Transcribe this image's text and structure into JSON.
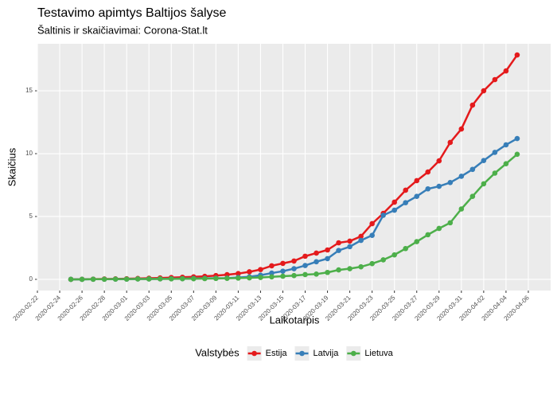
{
  "chart_data": {
    "type": "line",
    "title": "Testavimo apimtys Baltijos šalyse",
    "subtitle": "Šaltinis ir skaičiavimai: Corona-Stat.lt",
    "x_label": "Laikotarpis",
    "y_label": "Skaičius",
    "legend_title": "Valstybės",
    "legend_position": "bottom",
    "grid": true,
    "x": [
      "2020-02-25",
      "2020-02-26",
      "2020-02-27",
      "2020-02-28",
      "2020-02-29",
      "2020-03-01",
      "2020-03-02",
      "2020-03-03",
      "2020-03-04",
      "2020-03-05",
      "2020-03-06",
      "2020-03-07",
      "2020-03-08",
      "2020-03-09",
      "2020-03-10",
      "2020-03-11",
      "2020-03-12",
      "2020-03-13",
      "2020-03-14",
      "2020-03-15",
      "2020-03-16",
      "2020-03-17",
      "2020-03-18",
      "2020-03-19",
      "2020-03-20",
      "2020-03-21",
      "2020-03-22",
      "2020-03-23",
      "2020-03-24",
      "2020-03-25",
      "2020-03-26",
      "2020-03-27",
      "2020-03-28",
      "2020-03-29",
      "2020-03-30",
      "2020-03-31",
      "2020-04-01",
      "2020-04-02",
      "2020-04-03",
      "2020-04-04",
      "2020-04-05"
    ],
    "series": [
      {
        "name": "Estija",
        "color": "#e41a1c",
        "values": [
          0,
          0.01,
          0.02,
          0.03,
          0.04,
          0.05,
          0.07,
          0.09,
          0.11,
          0.14,
          0.17,
          0.2,
          0.24,
          0.3,
          0.37,
          0.46,
          0.6,
          0.78,
          1.08,
          1.27,
          1.46,
          1.84,
          2.09,
          2.34,
          2.91,
          3.04,
          3.42,
          4.43,
          5.25,
          6.14,
          7.09,
          7.85,
          8.54,
          9.43,
          10.89,
          11.96,
          13.86,
          15.0,
          15.89,
          16.58,
          17.85
        ]
      },
      {
        "name": "Latvija",
        "color": "#377eb8",
        "values": [
          0,
          0,
          0.01,
          0.01,
          0.02,
          0.02,
          0.03,
          0.03,
          0.04,
          0.05,
          0.06,
          0.07,
          0.08,
          0.09,
          0.1,
          0.15,
          0.2,
          0.33,
          0.5,
          0.65,
          0.85,
          1.1,
          1.4,
          1.65,
          2.3,
          2.6,
          3.1,
          3.5,
          5.1,
          5.5,
          6.1,
          6.6,
          7.2,
          7.4,
          7.7,
          8.2,
          8.75,
          9.45,
          10.1,
          10.7,
          11.2
        ]
      },
      {
        "name": "Lietuva",
        "color": "#4daf4a",
        "values": [
          0,
          0,
          0.01,
          0.01,
          0.02,
          0.02,
          0.03,
          0.03,
          0.04,
          0.04,
          0.05,
          0.05,
          0.06,
          0.07,
          0.08,
          0.1,
          0.12,
          0.15,
          0.2,
          0.25,
          0.3,
          0.38,
          0.42,
          0.55,
          0.75,
          0.85,
          1.0,
          1.25,
          1.55,
          1.95,
          2.45,
          3.0,
          3.55,
          4.05,
          4.5,
          5.6,
          6.6,
          7.6,
          8.45,
          9.2,
          9.95
        ]
      }
    ],
    "xlim": [
      "2020-02-22",
      "2020-04-08"
    ],
    "xticks": [
      "2020-02-22",
      "2020-02-24",
      "2020-02-26",
      "2020-02-28",
      "2020-03-01",
      "2020-03-03",
      "2020-03-05",
      "2020-03-07",
      "2020-03-09",
      "2020-03-11",
      "2020-03-13",
      "2020-03-15",
      "2020-03-17",
      "2020-03-19",
      "2020-03-21",
      "2020-03-23",
      "2020-03-25",
      "2020-03-27",
      "2020-03-29",
      "2020-03-31",
      "2020-04-02",
      "2020-04-04",
      "2020-04-06"
    ],
    "ylim": [
      -0.89,
      18.74
    ],
    "yticks": [
      0,
      5,
      10,
      15
    ]
  }
}
